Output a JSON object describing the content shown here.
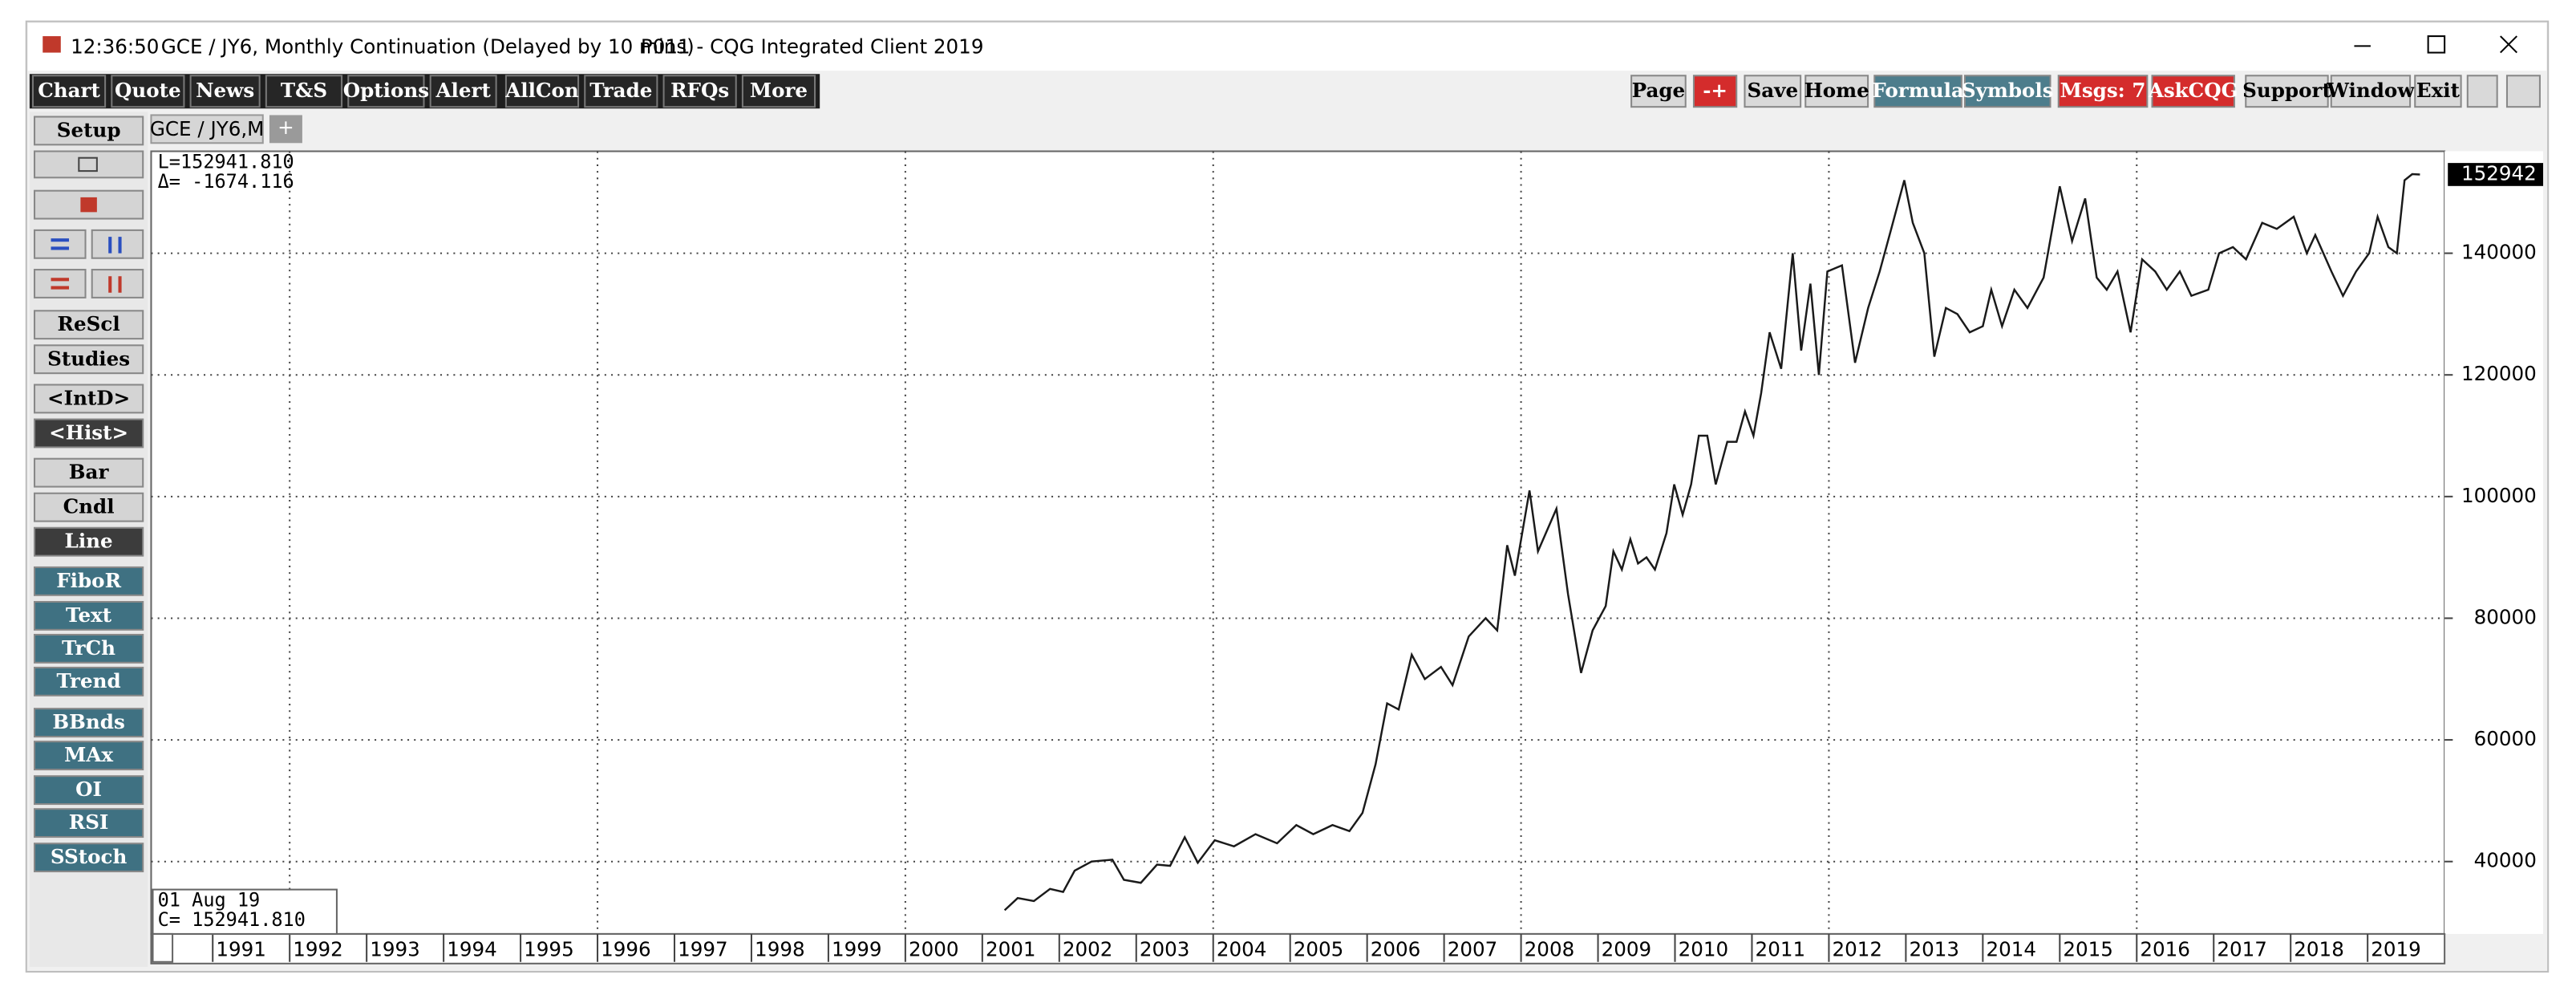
{
  "window": {
    "time": "12:36:50",
    "title": "GCE / JY6, Monthly Continuation (Delayed by 10 mins)",
    "page": "P011 - CQG Integrated Client 2019",
    "toolbar": [
      "Chart",
      "Quote",
      "News",
      "T&S",
      "Options",
      "Alert",
      "AllCon",
      "Trade",
      "RFQs",
      "More"
    ],
    "toolbar_right": [
      "Page",
      "-+",
      "Save",
      "Home",
      "Formula",
      "Symbols",
      "Msgs: 7",
      "AskCQG",
      "Support",
      "Window",
      "Exit"
    ],
    "sidebar": [
      "Setup",
      "ReScl",
      "Studies",
      "<IntD>",
      "<Hist>",
      "Bar",
      "Cndl",
      "Line",
      "FiboR",
      "Text",
      "TrCh",
      "Trend",
      "BBnds",
      "MAx",
      "OI",
      "RSI",
      "SStoch"
    ],
    "tab": "GCE / JY6,M",
    "new_tab": "+",
    "readout_top": [
      "L=152941.810",
      "Δ=  -1674.116"
    ],
    "readout_bottom": [
      "01 Aug 19",
      "C=  152941.810"
    ]
  },
  "chart_data": {
    "type": "line",
    "color": "#1a1a1a",
    "x": [
      2001.29,
      2001.46,
      2001.67,
      2001.88,
      2002.05,
      2002.2,
      2002.42,
      2002.69,
      2002.84,
      2003.06,
      2003.27,
      2003.44,
      2003.63,
      2003.8,
      2004.02,
      2004.27,
      2004.55,
      2004.83,
      2005.08,
      2005.3,
      2005.55,
      2005.77,
      2005.94,
      2006.11,
      2006.26,
      2006.41,
      2006.58,
      2006.75,
      2006.96,
      2007.11,
      2007.32,
      2007.54,
      2007.69,
      2007.82,
      2007.92,
      2008.11,
      2008.22,
      2008.46,
      2008.61,
      2008.78,
      2008.93,
      2009.1,
      2009.2,
      2009.31,
      2009.42,
      2009.52,
      2009.63,
      2009.74,
      2009.89,
      2009.99,
      2010.1,
      2010.21,
      2010.31,
      2010.42,
      2010.53,
      2010.68,
      2010.8,
      2010.91,
      2011.02,
      2011.12,
      2011.23,
      2011.38,
      2011.53,
      2011.64,
      2011.76,
      2011.87,
      2011.98,
      2012.17,
      2012.34,
      2012.51,
      2012.66,
      2012.81,
      2012.98,
      2013.09,
      2013.24,
      2013.37,
      2013.52,
      2013.67,
      2013.83,
      2014.0,
      2014.11,
      2014.25,
      2014.41,
      2014.58,
      2014.79,
      2015.0,
      2015.16,
      2015.33,
      2015.48,
      2015.61,
      2015.75,
      2015.92,
      2016.07,
      2016.24,
      2016.39,
      2016.56,
      2016.71,
      2016.93,
      2017.07,
      2017.25,
      2017.42,
      2017.63,
      2017.82,
      2018.04,
      2018.21,
      2018.32,
      2018.53,
      2018.68,
      2018.85,
      2019.02,
      2019.13,
      2019.27,
      2019.38,
      2019.48,
      2019.58,
      2019.68
    ],
    "values": [
      32000,
      34000,
      33500,
      35500,
      35000,
      38500,
      40000,
      40300,
      37000,
      36500,
      39500,
      39300,
      44000,
      39800,
      43500,
      42500,
      44500,
      43000,
      46000,
      44500,
      46000,
      45000,
      48000,
      56000,
      66000,
      65000,
      74000,
      70000,
      72000,
      69000,
      77000,
      80000,
      78000,
      92000,
      87000,
      101000,
      91000,
      98000,
      84000,
      71000,
      78000,
      82000,
      91000,
      88000,
      93000,
      89000,
      90000,
      88000,
      94000,
      102000,
      97000,
      102000,
      110000,
      110000,
      102000,
      109000,
      109000,
      114000,
      110000,
      117000,
      127000,
      121000,
      140000,
      124000,
      135000,
      120000,
      137000,
      138000,
      122000,
      131000,
      137000,
      144000,
      152000,
      145000,
      140000,
      123000,
      131000,
      130000,
      127000,
      128000,
      134000,
      128000,
      134000,
      131000,
      136000,
      151000,
      142000,
      149000,
      136000,
      134000,
      137000,
      127000,
      139000,
      137000,
      134000,
      137000,
      133000,
      134000,
      140000,
      141000,
      139000,
      145000,
      144000,
      146000,
      140000,
      143000,
      137000,
      133000,
      137000,
      140000,
      146000,
      141000,
      140000,
      152000,
      153000,
      152942
    ],
    "xlim": [
      1990.2,
      2020.0
    ],
    "ylim": [
      28100,
      156760
    ],
    "xticks": [
      1991,
      1992,
      1993,
      1994,
      1995,
      1996,
      1997,
      1998,
      1999,
      2000,
      2001,
      2002,
      2003,
      2004,
      2005,
      2006,
      2007,
      2008,
      2009,
      2010,
      2011,
      2012,
      2013,
      2014,
      2015,
      2016,
      2017,
      2018,
      2019
    ],
    "yticks": [
      40000,
      60000,
      80000,
      100000,
      120000,
      140000
    ],
    "current_price": 152942,
    "grid": true
  }
}
